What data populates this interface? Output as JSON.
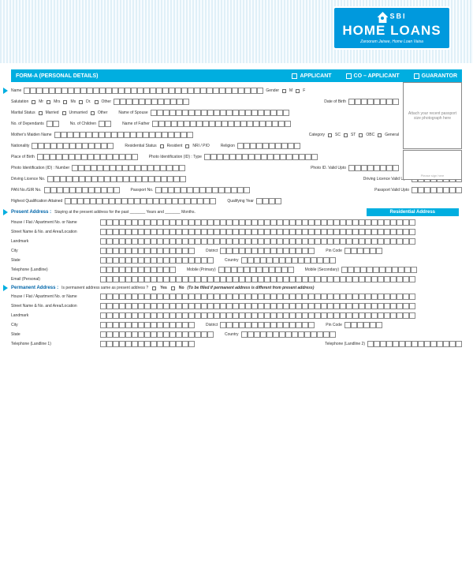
{
  "logo": {
    "l1": "SBI",
    "l2": "HOME LOANS",
    "l3": "Zaroorат Jaisee, Home Loan Vaisa"
  },
  "header": {
    "title": "FORM-A (PERSONAL DETAILS)",
    "opts": [
      "APPLICANT",
      "CO – APPLICANT",
      "GUARANTOR"
    ]
  },
  "photo": "Attach your recent passport size photograph here",
  "sig": "Please sign here",
  "labels": {
    "name": "Name",
    "gender": "Gender",
    "m": "M",
    "f": "F",
    "salutation": "Salutation",
    "mr": "Mr",
    "mrs": "Mrs",
    "ms": "Ms",
    "dr": "Dr.",
    "other": "Other",
    "dob": "Date of Birth",
    "marital": "Marital Status",
    "married": "Married",
    "unmarried": "Unmarried",
    "spouse": "Name of Spouse",
    "dependants": "No. of Dependants",
    "children": "No. of Children",
    "father": "Name of Father",
    "mother": "Mother's Maiden Name",
    "category": "Category",
    "sc": "SC",
    "st": "ST",
    "obc": "OBC",
    "gen": "General",
    "nationality": "Nationality",
    "resstatus": "Residential Status",
    "resident": "Resident",
    "nri": "NRI / PIO",
    "religion": "Religion",
    "pob": "Place of Birth",
    "photoidtype": "Photo Identification (ID) : Type",
    "photoidnum": "Photo Identification (ID) : Number",
    "photoidvalid": "Photo ID. Valid Upto",
    "dlno": "Driving Licence No.",
    "dlvalid": "Driving Licence Valid Upto",
    "pan": "PAN No./GIR No.",
    "passport": "Passport No.",
    "passvalid": "Passport Valid Upto",
    "qual": "Highest Qualification Attained",
    "qualyr": "Qualifying Year",
    "paddr": "Present Address :",
    "paddr_sub": "Staying at the present address for the past _______ Years and _______ Months.",
    "resaddr": "Residential Address",
    "house": "House / Flat / Apartment No. or Name",
    "street": "Street Name & No. and Area/Location",
    "landmark": "Landmark",
    "city": "City",
    "district": "District",
    "pincode": "Pin Code",
    "state": "State",
    "country": "Country",
    "tel_ll": "Telephone (Landline)",
    "mob_p": "Mobile (Primary)",
    "mob_s": "Mobile (Secondary)",
    "email": "Email (Personal)",
    "permaddr": "Permanent Address :",
    "permaddr_sub": "Is permanent address same as present address ?",
    "yes": "Yes",
    "no": "No",
    "permnote": "(To be filled if permanent address is different from present address)",
    "tel1": "Telephone (Landline 1)",
    "tel2": "Telephone (Landline 2)"
  }
}
